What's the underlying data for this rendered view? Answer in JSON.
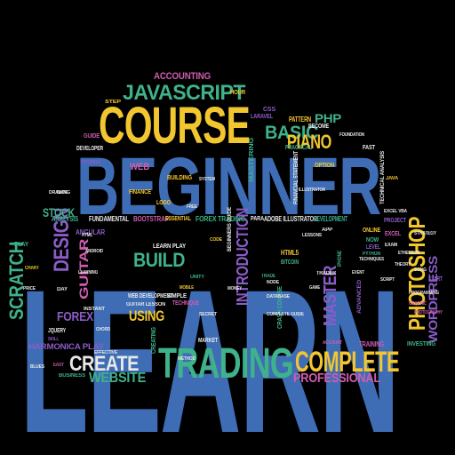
{
  "palette": {
    "blue": "#3e6db5",
    "yellow": "#f2c62f",
    "teal": "#3fb28a",
    "purple": "#8b5cc7",
    "white": "#e8e8e8",
    "pink": "#d05db0",
    "background": "#000000"
  },
  "words": [
    {
      "text": "LEARN",
      "color": "blue"
    },
    {
      "text": "BEGINNER",
      "color": "blue"
    },
    {
      "text": "COURSE",
      "color": "yellow"
    },
    {
      "text": "TRADING",
      "color": "teal"
    },
    {
      "text": "COMPLETE",
      "color": "yellow"
    },
    {
      "text": "CREATE",
      "color": "white"
    },
    {
      "text": "JAVASCRIPT",
      "color": "teal"
    },
    {
      "text": "PHOTOSHOP",
      "color": "yellow"
    },
    {
      "text": "BASIC",
      "color": "teal"
    },
    {
      "text": "PIANO",
      "color": "yellow"
    },
    {
      "text": "BUILD",
      "color": "teal"
    },
    {
      "text": "DESIGN",
      "color": "purple"
    },
    {
      "text": "SCRATCH",
      "color": "teal"
    },
    {
      "text": "INTRODUCTION",
      "color": "purple"
    },
    {
      "text": "MASTER",
      "color": "purple"
    },
    {
      "text": "WEBSITE",
      "color": "teal"
    },
    {
      "text": "PROFESSIONAL",
      "color": "pink"
    },
    {
      "text": "USING",
      "color": "yellow"
    },
    {
      "text": "FOREX",
      "color": "purple"
    },
    {
      "text": "GUITAR",
      "color": "pink"
    },
    {
      "text": "STOCK",
      "color": "teal"
    },
    {
      "text": "WORDPRESS",
      "color": "purple"
    },
    {
      "text": "PHP",
      "color": "teal"
    },
    {
      "text": "ACCOUNTING",
      "color": "pink"
    },
    {
      "text": "HARMONICA PLAY",
      "color": "purple"
    },
    {
      "text": "WEB",
      "color": "pink"
    },
    {
      "text": "FOREX TRADING",
      "color": "teal"
    },
    {
      "text": "ADOBE ILLUSTRATOR",
      "color": "white"
    },
    {
      "text": "DEVELOPMENT",
      "color": "teal"
    },
    {
      "text": "FINANCE",
      "color": "yellow"
    },
    {
      "text": "FUNDAMENTAL",
      "color": "white"
    },
    {
      "text": "BOOTSTRAP",
      "color": "pink"
    },
    {
      "text": "ANALYSIS",
      "color": "teal"
    },
    {
      "text": "PATTERN",
      "color": "yellow"
    },
    {
      "text": "ANGULAR",
      "color": "purple"
    },
    {
      "text": "HTML5",
      "color": "yellow"
    },
    {
      "text": "BITCOIN",
      "color": "teal"
    },
    {
      "text": "TRAINING",
      "color": "pink"
    },
    {
      "text": "INVESTING",
      "color": "teal"
    },
    {
      "text": "EXCEL",
      "color": "pink"
    },
    {
      "text": "ONLINE",
      "color": "yellow"
    },
    {
      "text": "WEB DEVELOPMENT",
      "color": "white"
    },
    {
      "text": "BUILDING",
      "color": "yellow"
    },
    {
      "text": "ESSENTIAL",
      "color": "yellow"
    },
    {
      "text": "SIMPLE",
      "color": "white"
    },
    {
      "text": "TECHNIQUE",
      "color": "pink"
    },
    {
      "text": "LEARN PLAY",
      "color": "white"
    },
    {
      "text": "PLAY",
      "color": "teal"
    },
    {
      "text": "GUIDE",
      "color": "pink"
    },
    {
      "text": "LARAVEL",
      "color": "purple"
    },
    {
      "text": "BECOME",
      "color": "white"
    },
    {
      "text": "OPTION",
      "color": "yellow"
    },
    {
      "text": "HOUR",
      "color": "yellow"
    },
    {
      "text": "PRACTICAL",
      "color": "teal"
    },
    {
      "text": "JQUERY",
      "color": "white"
    },
    {
      "text": "STEP",
      "color": "yellow"
    },
    {
      "text": "MARKET",
      "color": "white"
    },
    {
      "text": "BUSINESS",
      "color": "teal"
    },
    {
      "text": "LEVEL",
      "color": "purple"
    },
    {
      "text": "PROJECT",
      "color": "purple"
    },
    {
      "text": "START",
      "color": "purple"
    },
    {
      "text": "DEVELOPER",
      "color": "white"
    },
    {
      "text": "CSS",
      "color": "purple"
    },
    {
      "text": "TUTORIAL",
      "color": "purple"
    },
    {
      "text": "MASTERING",
      "color": "teal"
    },
    {
      "text": "FINANCIAL STATEMENT",
      "color": "white"
    },
    {
      "text": "TECHNICAL ANALYSIS",
      "color": "white"
    },
    {
      "text": "CRASH COURSE",
      "color": "teal"
    },
    {
      "text": "LOGO",
      "color": "yellow"
    },
    {
      "text": "BEGINNERS GUIDE",
      "color": "white"
    },
    {
      "text": "GUITAR LESSON",
      "color": "white"
    },
    {
      "text": "NOW",
      "color": "teal"
    },
    {
      "text": "FAST",
      "color": "white"
    },
    {
      "text": "PARA",
      "color": "white"
    },
    {
      "text": "ADVANCED",
      "color": "purple"
    },
    {
      "text": "IPHONE",
      "color": "teal"
    },
    {
      "text": "EASY",
      "color": "pink"
    },
    {
      "text": "DAY",
      "color": "white"
    },
    {
      "text": "JAVA",
      "color": "yellow"
    },
    {
      "text": "TRADE",
      "color": "teal"
    },
    {
      "text": "CREATING",
      "color": "teal"
    },
    {
      "text": "ACCOUNT",
      "color": "pink"
    },
    {
      "text": "EXAM",
      "color": "white"
    },
    {
      "text": "PYTHON",
      "color": "teal"
    },
    {
      "text": "CHART",
      "color": "yellow"
    },
    {
      "text": "STRATEGY",
      "color": "white"
    },
    {
      "text": "APP",
      "color": "white"
    },
    {
      "text": "LEARNING",
      "color": "white"
    },
    {
      "text": "TRADER",
      "color": "white"
    },
    {
      "text": "COMPLETE GUIDE",
      "color": "white"
    },
    {
      "text": "CHORD",
      "color": "white"
    },
    {
      "text": "SKILL",
      "color": "purple"
    },
    {
      "text": "HTML",
      "color": "white"
    },
    {
      "text": "SCRIPT",
      "color": "white"
    },
    {
      "text": "UNITY",
      "color": "teal"
    },
    {
      "text": "GRAPHIC",
      "color": "pink"
    },
    {
      "text": "PHOTOGRAPHY",
      "color": "pink"
    },
    {
      "text": "DRAWING",
      "color": "white"
    },
    {
      "text": "MOBILE",
      "color": "yellow"
    },
    {
      "text": "CODE",
      "color": "yellow"
    },
    {
      "text": "ILLUSTRATOR",
      "color": "white"
    },
    {
      "text": "FOUNDATION",
      "color": "white"
    },
    {
      "text": "INSTANT",
      "color": "white"
    },
    {
      "text": "DATABASE",
      "color": "white"
    },
    {
      "text": "SECRET",
      "color": "white"
    },
    {
      "text": "EXCEL VBA",
      "color": "white"
    },
    {
      "text": "PRICE",
      "color": "white"
    },
    {
      "text": "PROGRAMMING",
      "color": "white"
    },
    {
      "text": "BLUES",
      "color": "white"
    },
    {
      "text": "SONG",
      "color": "white"
    },
    {
      "text": "SYSTEM",
      "color": "white"
    },
    {
      "text": "TECHNIQUES",
      "color": "white"
    },
    {
      "text": "ETHEREUM",
      "color": "white"
    },
    {
      "text": "EFFECTIVE",
      "color": "white"
    },
    {
      "text": "LESSONS",
      "color": "white"
    },
    {
      "text": "THEORY",
      "color": "white"
    },
    {
      "text": "METHOD",
      "color": "white"
    },
    {
      "text": "MONEY",
      "color": "white"
    },
    {
      "text": "FREE",
      "color": "white"
    },
    {
      "text": "GAME",
      "color": "white"
    },
    {
      "text": "EVENT",
      "color": "white"
    },
    {
      "text": "ANDROID",
      "color": "white"
    },
    {
      "text": "BLOG",
      "color": "white"
    },
    {
      "text": "NODE",
      "color": "white"
    }
  ]
}
